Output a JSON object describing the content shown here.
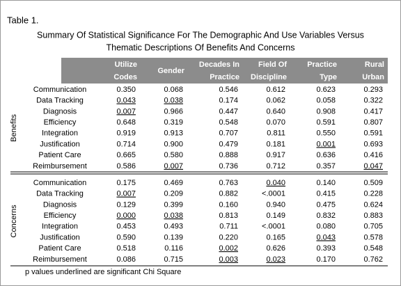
{
  "title": "Table 1.",
  "subtitle": [
    "Summary Of Statistical Significance For The Demographic And Use Variables Versus",
    "Thematic Descriptions Of Benefits And Concerns"
  ],
  "table": {
    "columns": [
      [
        "Utilize",
        "Codes"
      ],
      [
        "Gender"
      ],
      [
        "Decades In",
        "Practice"
      ],
      [
        "Field Of",
        "Discipline"
      ],
      [
        "Practice",
        "Type"
      ],
      [
        "Rural",
        "Urban"
      ]
    ],
    "groups": [
      {
        "name": "Benefits",
        "rows": [
          {
            "label": "Communication",
            "values": [
              "0.350",
              "0.068",
              "0.546",
              "0.612",
              "0.623",
              "0.293"
            ],
            "underlined": [
              false,
              false,
              false,
              false,
              false,
              false
            ]
          },
          {
            "label": "Data Tracking",
            "values": [
              "0.043",
              "0.038",
              "0.174",
              "0.062",
              "0.058",
              "0.322"
            ],
            "underlined": [
              true,
              true,
              false,
              false,
              false,
              false
            ]
          },
          {
            "label": "Diagnosis",
            "values": [
              "0.007",
              "0.966",
              "0.447",
              "0.640",
              "0.908",
              "0.417"
            ],
            "underlined": [
              true,
              false,
              false,
              false,
              false,
              false
            ]
          },
          {
            "label": "Efficiency",
            "values": [
              "0.648",
              "0.319",
              "0.548",
              "0.070",
              "0.591",
              "0.807"
            ],
            "underlined": [
              false,
              false,
              false,
              false,
              false,
              false
            ]
          },
          {
            "label": "Integration",
            "values": [
              "0.919",
              "0.913",
              "0.707",
              "0.811",
              "0.550",
              "0.591"
            ],
            "underlined": [
              false,
              false,
              false,
              false,
              false,
              false
            ]
          },
          {
            "label": "Justification",
            "values": [
              "0.714",
              "0.900",
              "0.479",
              "0.181",
              "0.001",
              "0.693"
            ],
            "underlined": [
              false,
              false,
              false,
              false,
              true,
              false
            ]
          },
          {
            "label": "Patient Care",
            "values": [
              "0.665",
              "0.580",
              "0.888",
              "0.917",
              "0.636",
              "0.416"
            ],
            "underlined": [
              false,
              false,
              false,
              false,
              false,
              false
            ]
          },
          {
            "label": "Reimbursement",
            "values": [
              "0.586",
              "0.007",
              "0.736",
              "0.712",
              "0.357",
              "0.047"
            ],
            "underlined": [
              false,
              true,
              false,
              false,
              false,
              true
            ]
          }
        ]
      },
      {
        "name": "Concerns",
        "rows": [
          {
            "label": "Communication",
            "values": [
              "0.175",
              "0.469",
              "0.763",
              "0.040",
              "0.140",
              "0.509"
            ],
            "underlined": [
              false,
              false,
              false,
              true,
              false,
              false
            ]
          },
          {
            "label": "Data Tracking",
            "values": [
              "0.007",
              "0.209",
              "0.882",
              "<.0001",
              "0.415",
              "0.228"
            ],
            "underlined": [
              true,
              false,
              false,
              false,
              false,
              false
            ]
          },
          {
            "label": "Diagnosis",
            "values": [
              "0.129",
              "0.399",
              "0.160",
              "0.940",
              "0.475",
              "0.624"
            ],
            "underlined": [
              false,
              false,
              false,
              false,
              false,
              false
            ]
          },
          {
            "label": "Efficiency",
            "values": [
              "0.000",
              "0.038",
              "0.813",
              "0.149",
              "0.832",
              "0.883"
            ],
            "underlined": [
              true,
              true,
              false,
              false,
              false,
              false
            ]
          },
          {
            "label": "Integration",
            "values": [
              "0.453",
              "0.493",
              "0.711",
              "<.0001",
              "0.080",
              "0.705"
            ],
            "underlined": [
              false,
              false,
              false,
              false,
              false,
              false
            ]
          },
          {
            "label": "Justification",
            "values": [
              "0.590",
              "0.139",
              "0.220",
              "0.165",
              "0.043",
              "0.578"
            ],
            "underlined": [
              false,
              false,
              false,
              false,
              true,
              false
            ]
          },
          {
            "label": "Patient Care",
            "values": [
              "0.518",
              "0.116",
              "0.002",
              "0.626",
              "0.393",
              "0.548"
            ],
            "underlined": [
              false,
              false,
              true,
              false,
              false,
              false
            ]
          },
          {
            "label": "Reimbursement",
            "values": [
              "0.086",
              "0.715",
              "0.003",
              "0.023",
              "0.170",
              "0.762"
            ],
            "underlined": [
              false,
              false,
              true,
              true,
              false,
              false
            ]
          }
        ]
      }
    ]
  },
  "footnote": "p values underlined are significant Chi Square"
}
